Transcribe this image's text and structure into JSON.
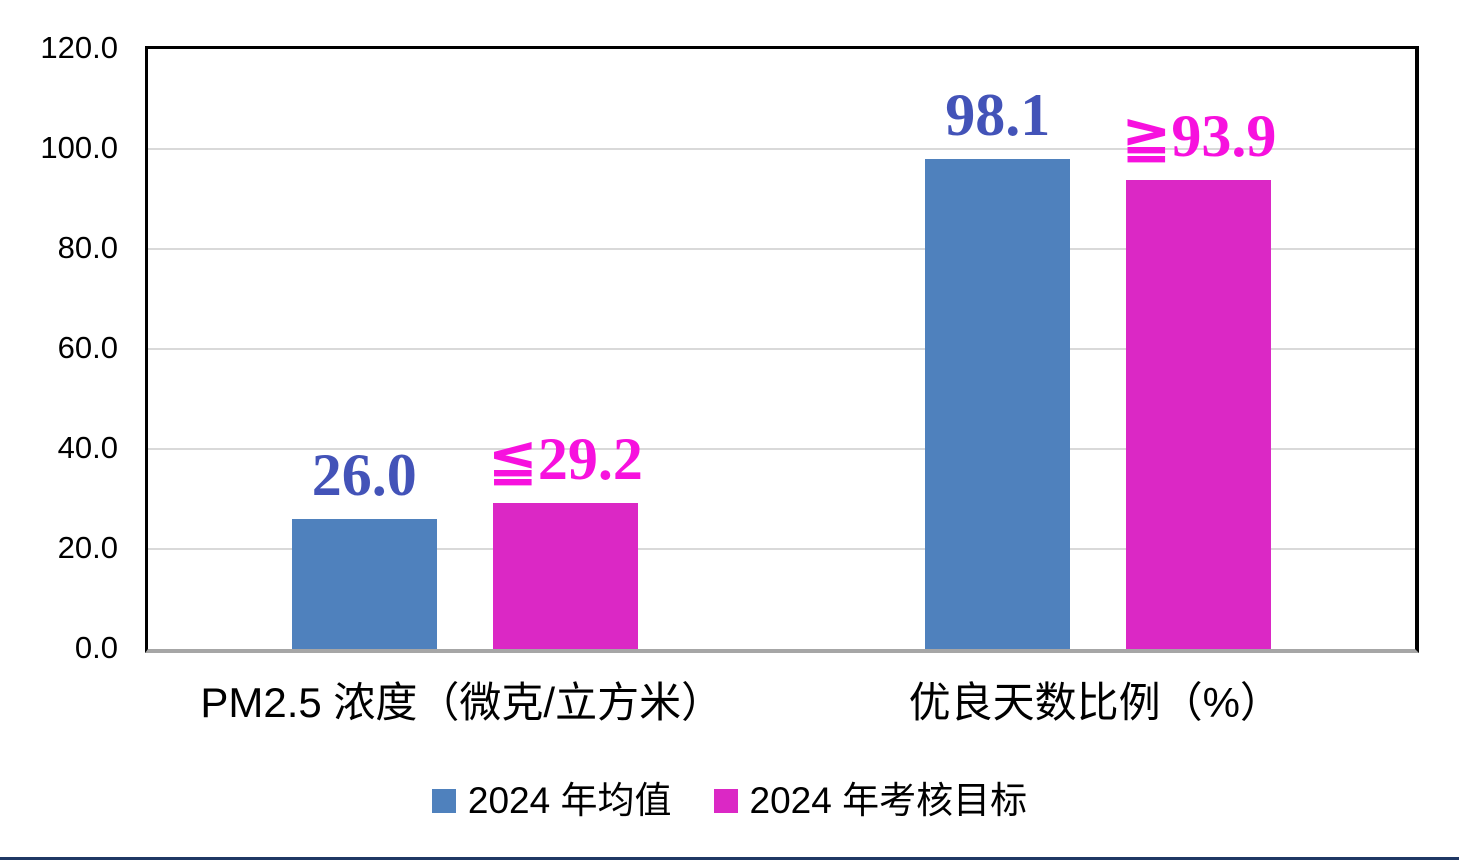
{
  "chart_data": {
    "type": "bar",
    "categories": [
      "PM2.5 浓度（微克/立方米）",
      "优良天数比例（%）"
    ],
    "series": [
      {
        "name": "2024 年均值",
        "values": [
          26.0,
          98.1
        ],
        "data_labels": [
          "26.0",
          "98.1"
        ],
        "bar_color": "#4F81BD",
        "label_color": "#4353B8"
      },
      {
        "name": "2024 年考核目标",
        "values": [
          29.2,
          93.9
        ],
        "data_labels": [
          "≦29.2",
          "≧93.9"
        ],
        "bar_color": "#DB28C5",
        "label_color": "#F711DE"
      }
    ],
    "ylim": [
      0,
      120
    ],
    "yticks": [
      {
        "value": 120,
        "label": "120.0"
      },
      {
        "value": 100,
        "label": "100.0"
      },
      {
        "value": 80,
        "label": "80.0"
      },
      {
        "value": 60,
        "label": "60.0"
      },
      {
        "value": 40,
        "label": "40.0"
      },
      {
        "value": 20,
        "label": "20.0"
      },
      {
        "value": 0,
        "label": "0.0"
      }
    ],
    "grid": "horizontal",
    "legend_position": "bottom",
    "colors": {
      "gridline": "#D9D9D9",
      "baseline": "#A6A6A6",
      "plot_border": "#000000",
      "bottom_rule": "#1F3864"
    }
  }
}
